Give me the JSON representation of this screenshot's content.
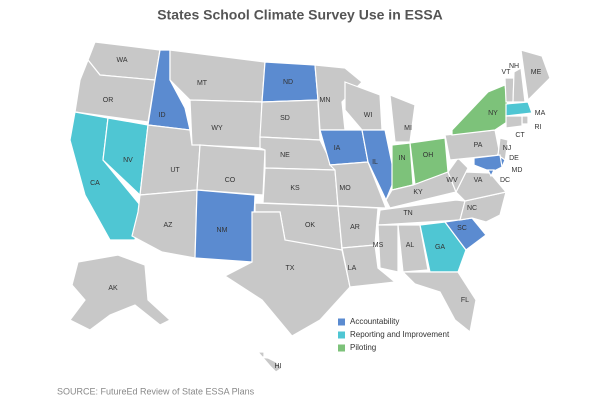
{
  "title": "States School Climate Survey Use in ESSA",
  "states": [
    "WA",
    "OR",
    "CA",
    "NV",
    "ID",
    "MT",
    "WY",
    "UT",
    "AZ",
    "CO",
    "NM",
    "ND",
    "SD",
    "NE",
    "KS",
    "OK",
    "TX",
    "MN",
    "IA",
    "MO",
    "AR",
    "LA",
    "WI",
    "IL",
    "MI",
    "IN",
    "OH",
    "KY",
    "TN",
    "MS",
    "AL",
    "GA",
    "FL",
    "SC",
    "NC",
    "VA",
    "WV",
    "PA",
    "NY",
    "NJ",
    "DE",
    "MD",
    "DC",
    "VT",
    "NH",
    "ME",
    "MA",
    "RI",
    "CT",
    "AK",
    "HI"
  ],
  "legend": [
    {
      "label": "Accountability",
      "color": "#5b8bd0",
      "states": [
        "ID",
        "ND",
        "IA",
        "IL",
        "NM",
        "SC",
        "DE",
        "MD",
        "DC"
      ]
    },
    {
      "label": "Reporting and Improvement",
      "color": "#4fc6d3",
      "states": [
        "CA",
        "NV",
        "GA",
        "MA"
      ]
    },
    {
      "label": "Piloting",
      "color": "#7dc27a",
      "states": [
        "IN",
        "OH",
        "NY"
      ]
    }
  ],
  "source": "SOURCE: FutureEd Review of State ESSA Plans"
}
